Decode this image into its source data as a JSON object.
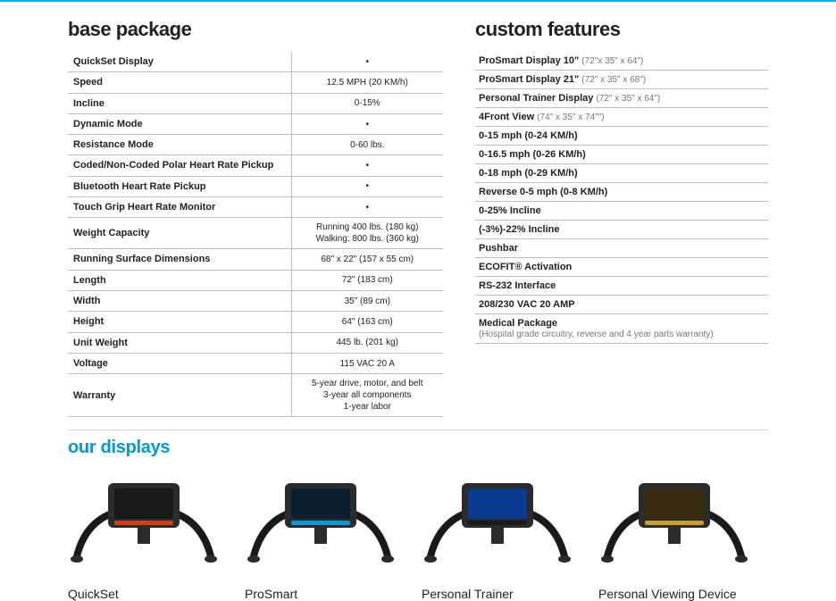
{
  "colors": {
    "accent": "#00b4e6",
    "text": "#222222",
    "rule": "#bfbfbf",
    "displays_heading": "#0099d6",
    "background": "#ffffff"
  },
  "headings": {
    "base_package": "base package",
    "custom_features": "custom features",
    "our_displays": "our displays"
  },
  "base_package": {
    "rows": [
      {
        "label": "QuickSet Display",
        "value": "•"
      },
      {
        "label": "Speed",
        "value": "12.5 MPH (20 KM/h)"
      },
      {
        "label": "Incline",
        "value": "0-15%"
      },
      {
        "label": "Dynamic Mode",
        "value": "•"
      },
      {
        "label": "Resistance Mode",
        "value": "0-60 lbs."
      },
      {
        "label": "Coded/Non-Coded Polar Heart Rate Pickup",
        "value": "•"
      },
      {
        "label": "Bluetooth Heart Rate Pickup",
        "value": "•"
      },
      {
        "label": "Touch Grip Heart Rate Monitor",
        "value": "•"
      },
      {
        "label": "Weight Capacity",
        "value": "Running 400 lbs. (180 kg)\nWalking: 800 lbs. (360 kg)"
      },
      {
        "label": "Running Surface Dimensions",
        "value": "68\" x 22\" (157 x 55 cm)"
      },
      {
        "label": "Length",
        "value": "72\" (183 cm)"
      },
      {
        "label": "Width",
        "value": "35\" (89 cm)"
      },
      {
        "label": "Height",
        "value": "64\" (163 cm)"
      },
      {
        "label": "Unit Weight",
        "value": "445 lb. (201 kg)"
      },
      {
        "label": "Voltage",
        "value": "115 VAC 20 A"
      },
      {
        "label": "Warranty",
        "value": "5-year drive, motor, and belt\n3-year all components\n1-year labor"
      }
    ]
  },
  "custom_features": {
    "items": [
      {
        "label": "ProSmart Display 10\"",
        "note": "(72\"x 35\" x 64\")"
      },
      {
        "label": "ProSmart Display 21\"",
        "note": "(72\" x 35\" x 68\")"
      },
      {
        "label": "Personal Trainer Display",
        "note": "(72\" x 35\" x 64\")"
      },
      {
        "label": "4Front View",
        "note": "(74\" x 35\" x 74\"\")"
      },
      {
        "label": "0-15 mph (0-24 KM/h)",
        "note": ""
      },
      {
        "label": "0-16.5 mph (0-26 KM/h)",
        "note": ""
      },
      {
        "label": "0-18 mph (0-29 KM/h)",
        "note": ""
      },
      {
        "label": "Reverse 0-5 mph (0-8 KM/h)",
        "note": ""
      },
      {
        "label": "0-25% Incline",
        "note": ""
      },
      {
        "label": "(-3%)-22% Incline",
        "note": ""
      },
      {
        "label": "Pushbar",
        "note": ""
      },
      {
        "label": "ECOFIT® Activation",
        "note": ""
      },
      {
        "label": "RS-232 Interface",
        "note": ""
      },
      {
        "label": "208/230 VAC 20 AMP",
        "note": ""
      },
      {
        "label": "Medical Package",
        "note": "(Hospital grade circuitry, reverse and 4 year parts warranty)",
        "wrap": true
      }
    ]
  },
  "displays": {
    "items": [
      {
        "caption": "QuickSet",
        "screen_color": "#1a1a1a",
        "accent": "#d63c1a"
      },
      {
        "caption": "ProSmart",
        "screen_color": "#0a2030",
        "accent": "#0099d6"
      },
      {
        "caption": "Personal Trainer",
        "screen_color": "#0b3b8f",
        "accent": "#1a1a1a"
      },
      {
        "caption": "Personal Viewing Device",
        "screen_color": "#3a2a10",
        "accent": "#c8a030"
      }
    ]
  }
}
